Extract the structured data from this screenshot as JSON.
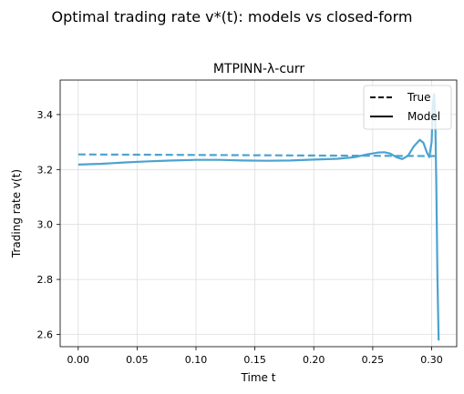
{
  "figure": {
    "suptitle": "Optimal trading rate v*(t): models vs closed-form"
  },
  "chart_data": {
    "type": "line",
    "title": "MTPINN-λ-curr",
    "xlabel": "Time t",
    "ylabel": "Trading rate v(t)",
    "xlim": [
      -0.0153,
      0.3213
    ],
    "ylim": [
      2.5555,
      3.5255
    ],
    "xticks": [
      0.0,
      0.05,
      0.1,
      0.15,
      0.2,
      0.25,
      0.3
    ],
    "xtick_labels": [
      "0.00",
      "0.05",
      "0.10",
      "0.15",
      "0.20",
      "0.25",
      "0.30"
    ],
    "yticks": [
      2.6,
      2.8,
      3.0,
      3.2,
      3.4
    ],
    "ytick_labels": [
      "2.6",
      "2.8",
      "3.0",
      "3.2",
      "3.4"
    ],
    "grid": true,
    "legend": {
      "placement": "top-right",
      "entries": [
        {
          "label": "True",
          "style": "dashed"
        },
        {
          "label": "Model",
          "style": "solid"
        }
      ]
    },
    "colors": {
      "series": "#4ca3d0",
      "legend": "#000000",
      "grid": "#dddddd"
    },
    "series": [
      {
        "name": "True",
        "style": "dashed",
        "x": [
          0.0,
          0.05,
          0.1,
          0.15,
          0.2,
          0.25,
          0.3,
          0.306
        ],
        "y": [
          3.255,
          3.254,
          3.253,
          3.252,
          3.251,
          3.25,
          3.249,
          3.249
        ]
      },
      {
        "name": "Model",
        "style": "solid",
        "x": [
          0.0,
          0.02,
          0.04,
          0.06,
          0.08,
          0.1,
          0.12,
          0.14,
          0.16,
          0.18,
          0.2,
          0.22,
          0.235,
          0.245,
          0.255,
          0.26,
          0.265,
          0.27,
          0.275,
          0.28,
          0.285,
          0.29,
          0.293,
          0.296,
          0.298,
          0.3,
          0.301,
          0.302,
          0.303,
          0.304,
          0.305,
          0.306
        ],
        "y": [
          3.218,
          3.221,
          3.226,
          3.23,
          3.233,
          3.235,
          3.235,
          3.233,
          3.232,
          3.233,
          3.236,
          3.239,
          3.245,
          3.255,
          3.262,
          3.263,
          3.258,
          3.245,
          3.238,
          3.25,
          3.285,
          3.308,
          3.298,
          3.262,
          3.245,
          3.3,
          3.43,
          3.475,
          3.4,
          3.15,
          2.8,
          2.578
        ]
      }
    ]
  }
}
